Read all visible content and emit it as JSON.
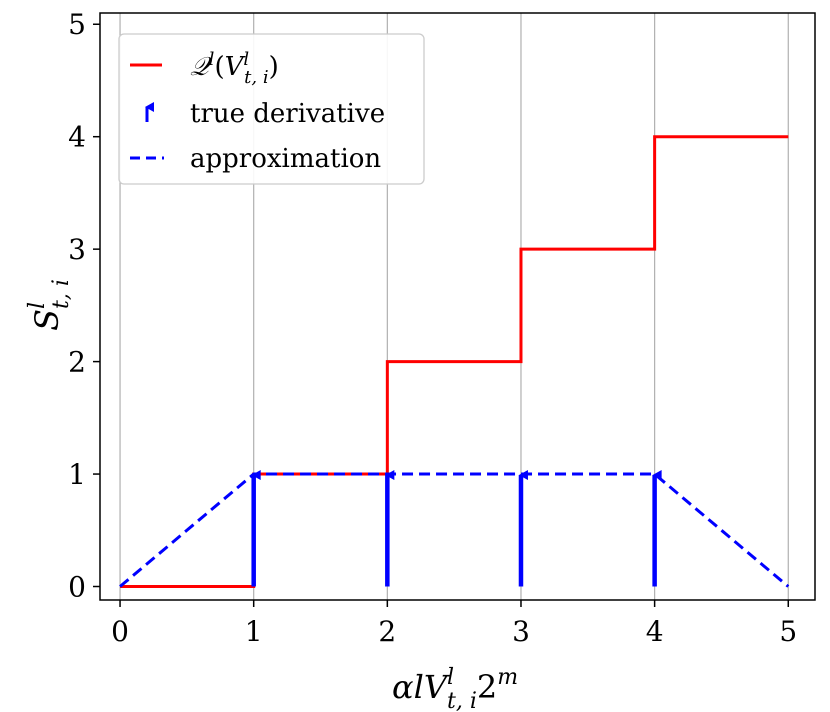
{
  "chart_data": {
    "type": "line",
    "xlabel": {
      "base": "αlV",
      "sub": "t, i",
      "sup": "l",
      "tail": "2",
      "tail_sup": "m"
    },
    "ylabel": {
      "base": "S",
      "sub": "t, i",
      "sup": "l"
    },
    "xlim": [
      -0.15,
      5.2
    ],
    "ylim": [
      -0.12,
      5.1
    ],
    "xticks": [
      0,
      1,
      2,
      3,
      4,
      5
    ],
    "yticks": [
      0,
      1,
      2,
      3,
      4,
      5
    ],
    "grid": {
      "x": true,
      "y": false
    },
    "legend_position": "top-left",
    "series": [
      {
        "name": "𝒬l(Vlt, i)",
        "style": "solid",
        "color": "#ff0000",
        "x": [
          0,
          1,
          1,
          2,
          2,
          3,
          3,
          4,
          4,
          5
        ],
        "y": [
          0,
          0,
          1,
          1,
          2,
          2,
          3,
          3,
          4,
          4
        ]
      },
      {
        "name": "true derivative",
        "style": "arrows",
        "color": "#0000ff",
        "x": [
          1,
          2,
          3,
          4
        ],
        "y": [
          1,
          1,
          1,
          1
        ]
      },
      {
        "name": "approximation",
        "style": "dashed",
        "color": "#0000ff",
        "x": [
          0,
          1,
          2,
          3,
          4,
          5
        ],
        "y": [
          0,
          1,
          1,
          1,
          1,
          0
        ]
      }
    ]
  }
}
